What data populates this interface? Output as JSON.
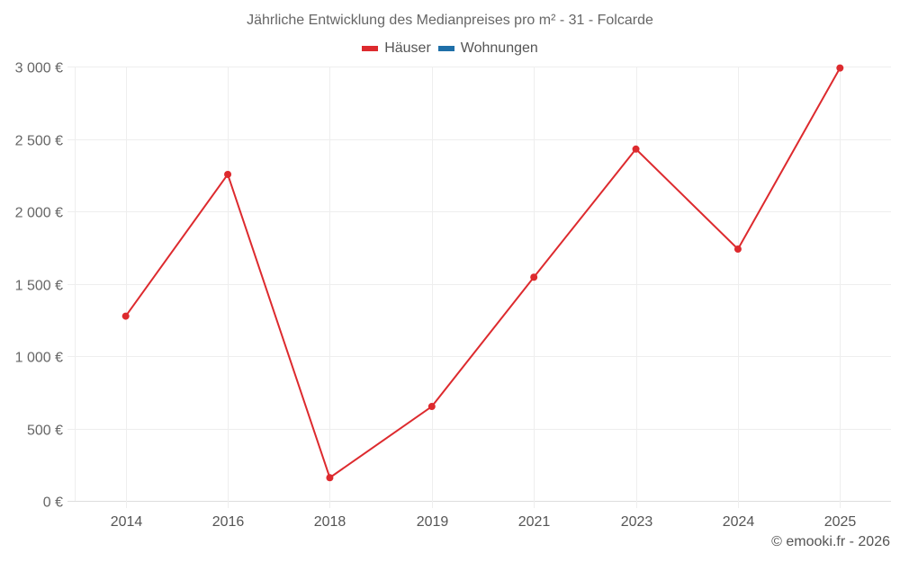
{
  "title": "Jährliche Entwicklung des Medianpreises pro m² - 31 - Folcarde",
  "legend": [
    {
      "label": "Häuser",
      "color": "#dd2a2e"
    },
    {
      "label": "Wohnungen",
      "color": "#1f6fa8"
    }
  ],
  "credit": "© emooki.fr - 2026",
  "chart_data": {
    "type": "line",
    "title": "Jährliche Entwicklung des Medianpreises pro m² - 31 - Folcarde",
    "xlabel": "",
    "ylabel": "",
    "categories": [
      "2014",
      "2016",
      "2018",
      "2019",
      "2021",
      "2023",
      "2024",
      "2025"
    ],
    "series": [
      {
        "name": "Häuser",
        "color": "#dd2a2e",
        "values": [
          1276,
          2255,
          160,
          652,
          1545,
          2430,
          1739,
          2990
        ]
      },
      {
        "name": "Wohnungen",
        "color": "#1f6fa8",
        "values": []
      }
    ],
    "yticks": [
      0,
      500,
      1000,
      1500,
      2000,
      2500,
      3000
    ],
    "ytick_labels": [
      "0 €",
      "500 €",
      "1 000 €",
      "1 500 €",
      "2 000 €",
      "2 500 €",
      "3 000 €"
    ],
    "ylim": [
      0,
      3000
    ],
    "grid": true,
    "legend_position": "top"
  }
}
